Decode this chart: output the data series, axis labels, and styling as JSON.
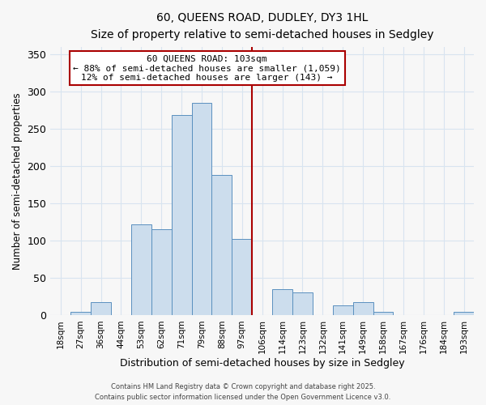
{
  "title": "60, QUEENS ROAD, DUDLEY, DY3 1HL",
  "subtitle": "Size of property relative to semi-detached houses in Sedgley",
  "xlabel": "Distribution of semi-detached houses by size in Sedgley",
  "ylabel": "Number of semi-detached properties",
  "bin_labels": [
    "18sqm",
    "27sqm",
    "36sqm",
    "44sqm",
    "53sqm",
    "62sqm",
    "71sqm",
    "79sqm",
    "88sqm",
    "97sqm",
    "106sqm",
    "114sqm",
    "123sqm",
    "132sqm",
    "141sqm",
    "149sqm",
    "158sqm",
    "167sqm",
    "176sqm",
    "184sqm",
    "193sqm"
  ],
  "bar_values": [
    0,
    5,
    18,
    0,
    122,
    115,
    268,
    285,
    188,
    103,
    0,
    35,
    31,
    0,
    13,
    18,
    5,
    0,
    0,
    0,
    5
  ],
  "bar_color": "#ccdded",
  "bar_edge_color": "#5a90bf",
  "marker_line_color": "#aa0000",
  "annotation_line1": "60 QUEENS ROAD: 103sqm",
  "annotation_line2": "← 88% of semi-detached houses are smaller (1,059)",
  "annotation_line3": "12% of semi-detached houses are larger (143) →",
  "annotation_box_color": "#ffffff",
  "annotation_box_edge_color": "#aa0000",
  "ylim": [
    0,
    360
  ],
  "yticks": [
    0,
    50,
    100,
    150,
    200,
    250,
    300,
    350
  ],
  "grid_color": "#d8e4f0",
  "footer_line1": "Contains HM Land Registry data © Crown copyright and database right 2025.",
  "footer_line2": "Contains public sector information licensed under the Open Government Licence v3.0.",
  "background_color": "#f7f7f7"
}
